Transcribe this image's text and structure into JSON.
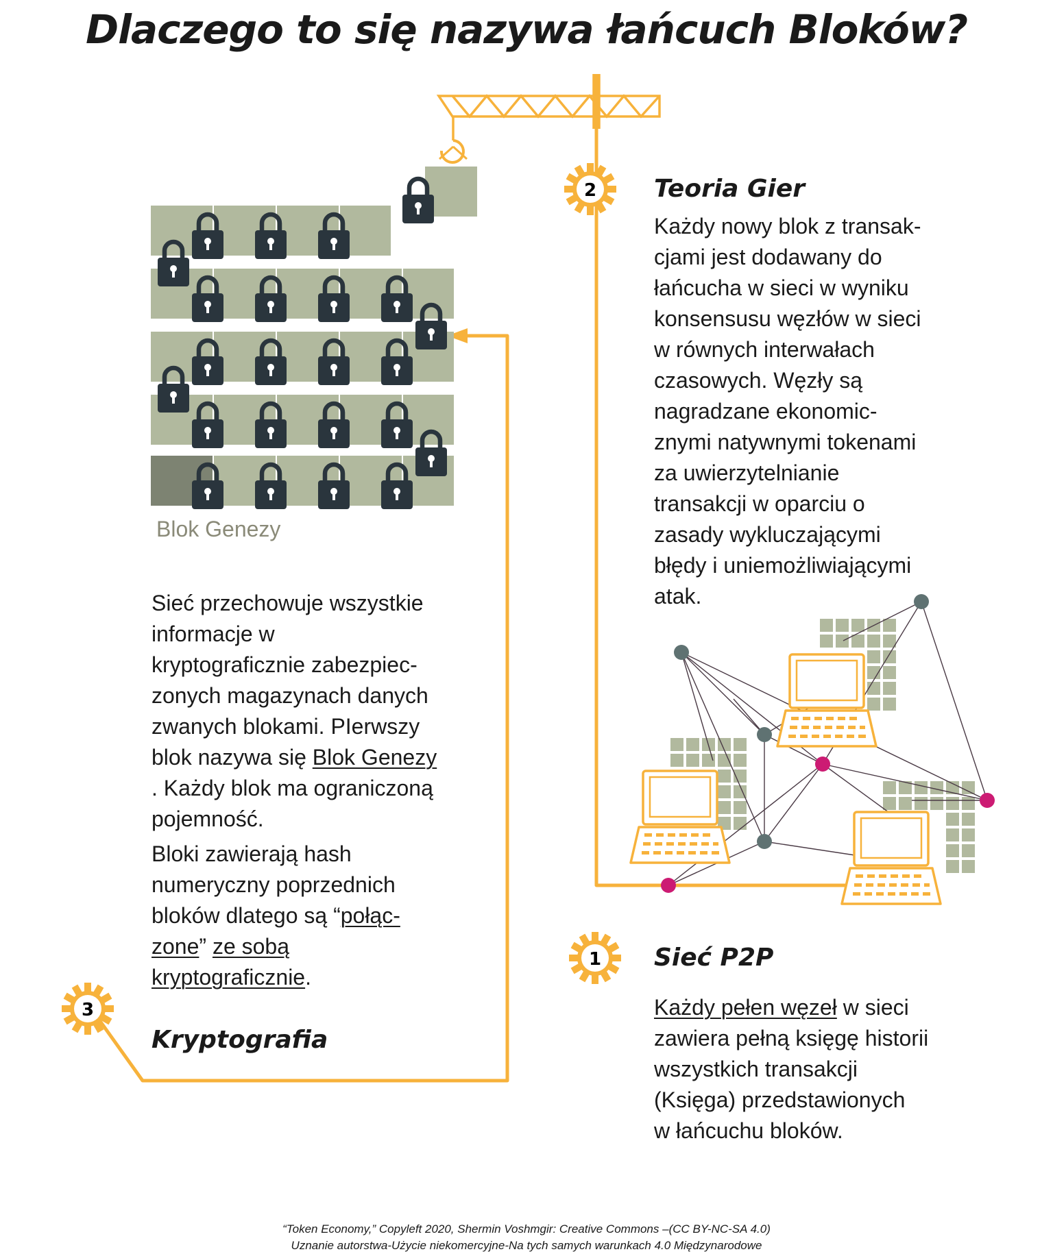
{
  "title": "Dlaczego to się nazywa łańcuch Bloków?",
  "genesis_label": "Blok Genezy",
  "sections": {
    "game_theory": {
      "number": "2",
      "heading": "Teoria Gier",
      "text_lines": [
        "Każdy nowy blok z transak-",
        "cjami jest dodawany do",
        "łańcucha w sieci w wyniku",
        "konsensusu węzłów w sieci",
        "w równych interwałach",
        "czasowych. Węzły są",
        "nagradzane ekonomic-",
        "znymi natywnymi tokenami",
        "za uwierzytelnianie",
        "transakcji w oparciu o",
        "zasady wykluczającymi",
        "błędy i uniemożliwiającymi",
        "atak."
      ]
    },
    "cryptography": {
      "number": "3",
      "heading": "Kryptografia",
      "p1": {
        "line1": "Sieć przechowuje wszystkie",
        "line2": "informacje w",
        "line3": "kryptograficznie zabezpiec-",
        "line4": "zonych magazynach danych",
        "line5": "zwanych blokami. PIerwszy",
        "line6_pre": "blok nazywa się ",
        "line6_link": "Blok Genezy",
        "line7": ". Każdy blok ma ograniczoną",
        "line8": "pojemność."
      },
      "p2": {
        "line1": "Bloki zawierają hash",
        "line2": "numeryczny poprzednich",
        "line3_pre": "bloków dlatego są “",
        "line3_link": "połąc-",
        "line4_link": "zone",
        "line4_mid": "” ",
        "line4_link2": "ze sobą",
        "line5_link": "kryptograficznie",
        "line5_post": "."
      }
    },
    "p2p": {
      "number": "1",
      "heading": "Sieć P2P",
      "line1_link": "Każdy pełen węzeł",
      "line1_post": " w sieci",
      "line2": "zawiera pełną księgę historii",
      "line3": "wszystkich transakcji",
      "line4": "(Księga) przedstawionych",
      "line5": "w łańcuchu bloków."
    }
  },
  "footer": {
    "line1": "“Token Economy,” Copyleft 2020, Shermin Voshmgir: Creative Commons –(CC BY-NC-SA 4.0)",
    "line2": "Uznanie autorstwa-Użycie niekomercyjne-Na tych samych warunkach 4.0 Międzynarodowe"
  },
  "colors": {
    "orange": "#f7b23b",
    "block": "#b1b99e",
    "genesis_block": "#7d8372",
    "lock": "#2a353d",
    "node_gray": "#5f7272",
    "node_pink": "#cc1b73",
    "edge": "#4a3a45"
  },
  "icons": [
    "crane-icon",
    "padlock-icon",
    "gear-icon",
    "laptop-icon",
    "network-node-icon"
  ]
}
